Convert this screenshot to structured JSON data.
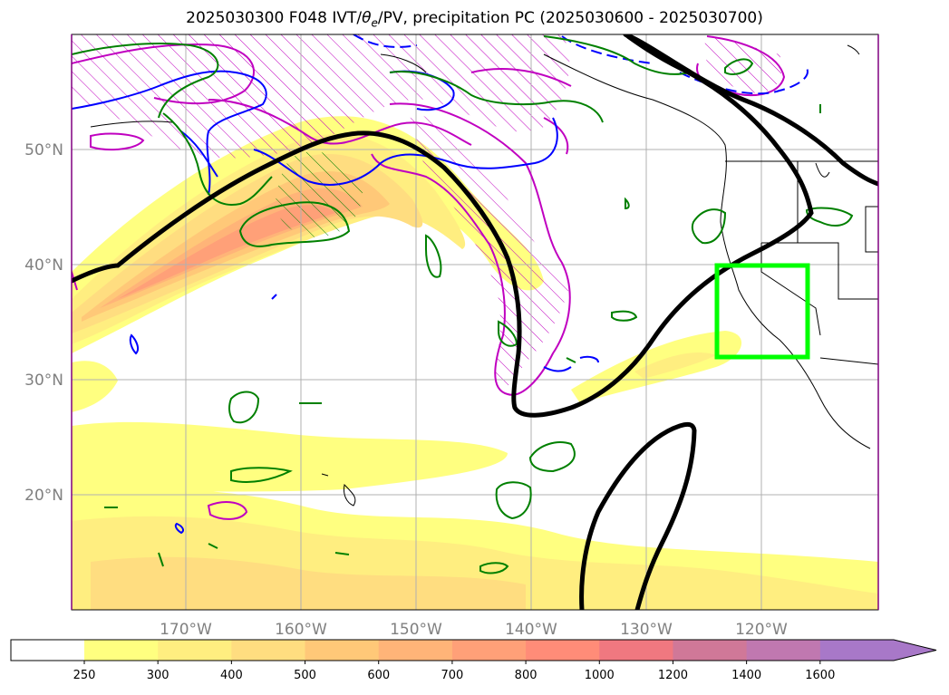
{
  "title": {
    "prefix": "2025030300 F048 IVT/",
    "theta": "θ",
    "theta_sub": "e",
    "suffix": "/PV, precipitation PC (2025030600 - 2025030700)"
  },
  "axes": {
    "lon_ticks": [
      "170°W",
      "160°W",
      "150°W",
      "140°W",
      "130°W",
      "120°W"
    ],
    "lat_ticks": [
      "50°N",
      "40°N",
      "30°N",
      "20°N"
    ]
  },
  "colorbar": {
    "ticks": [
      "250",
      "300",
      "400",
      "500",
      "600",
      "700",
      "800",
      "1000",
      "1200",
      "1400",
      "1600"
    ],
    "colors": [
      "#ffff80",
      "#ffee80",
      "#ffdd80",
      "#ffc878",
      "#ffb478",
      "#ffa078",
      "#ff8c78",
      "#f07880",
      "#d07898",
      "#c078b0",
      "#a878c8"
    ],
    "extend_color": "#a878c8"
  },
  "colors": {
    "ivt_axis": "#000000",
    "theta_contour": "#008000",
    "pv_contour": "#0000ff",
    "magenta_contour": "#c000c0",
    "target_box": "#00ff00"
  }
}
